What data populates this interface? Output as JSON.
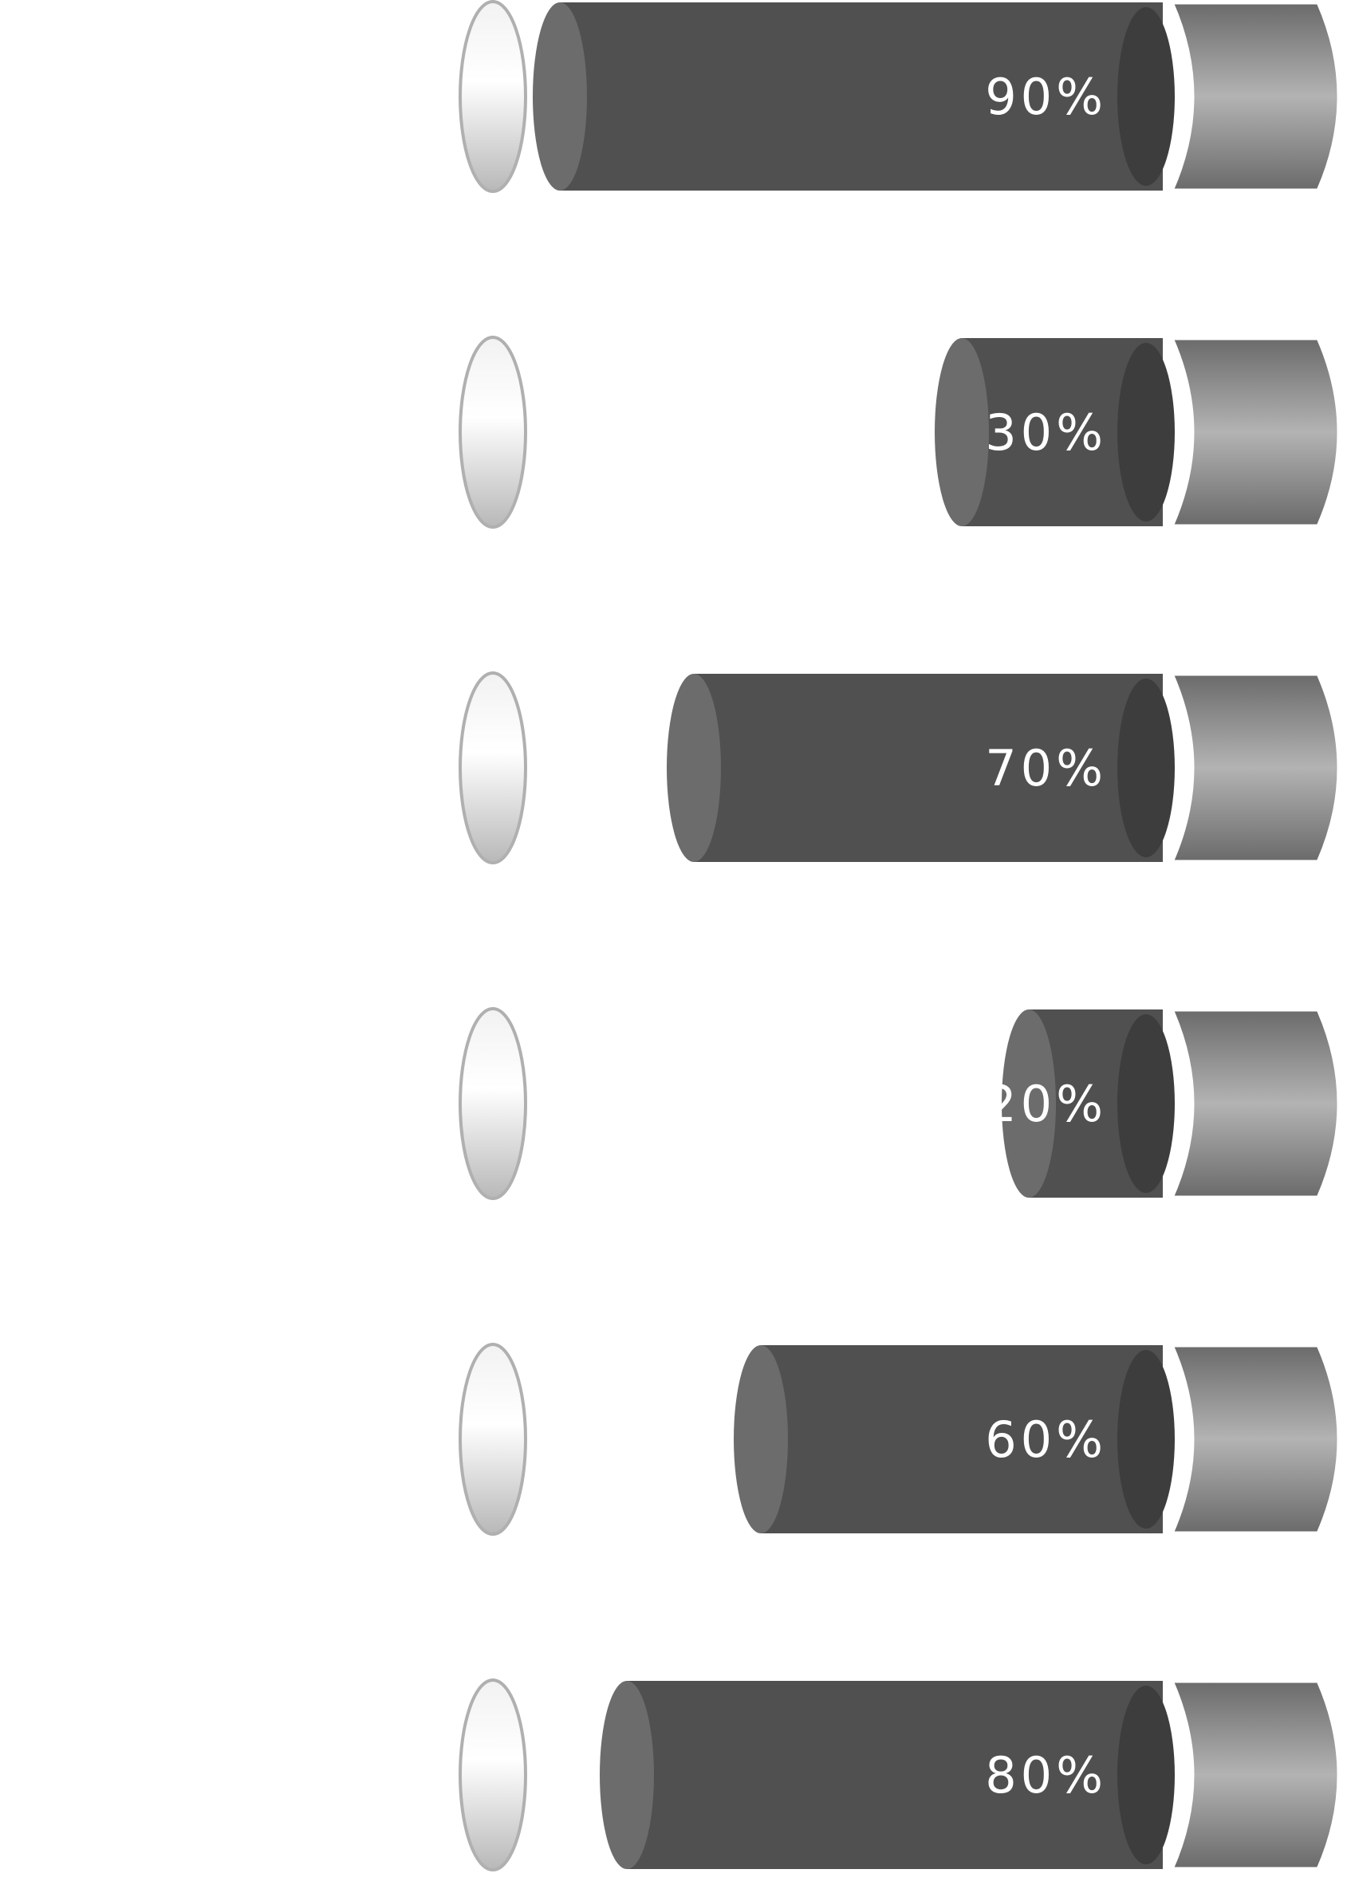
{
  "chart_data": {
    "type": "bar",
    "orientation": "horizontal",
    "style": "3d-cylinder",
    "title": "",
    "xlabel": "",
    "ylabel": "",
    "xlim": [
      0,
      100
    ],
    "grid": false,
    "legend": "none",
    "categories": [
      "",
      "",
      "",
      "",
      "",
      ""
    ],
    "values": [
      90,
      30,
      70,
      20,
      60,
      80
    ],
    "labels": [
      "90%",
      "30%",
      "70%",
      "20%",
      "60%",
      "80%"
    ],
    "colors": {
      "bar_body": "#505050",
      "bar_cap": "#6c6c6c",
      "bar_end_shadow": "#3d3d3d",
      "head_dark": "#6a6a6a",
      "head_light": "#b3b3b3",
      "track_disc_light": "#ffffff",
      "track_disc_dark": "#b8b8b8",
      "track_disc_stroke": "#b0b0b0",
      "label": "#ffffff"
    }
  }
}
